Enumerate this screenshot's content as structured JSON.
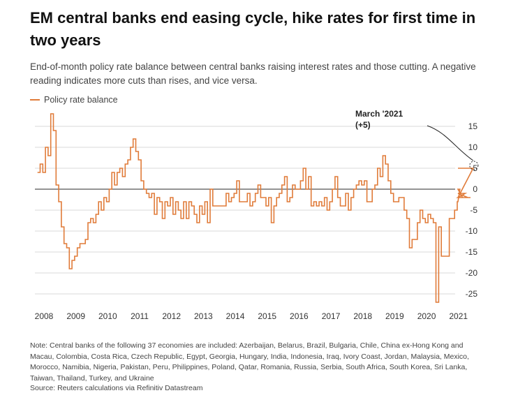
{
  "header": {
    "title": "EM central banks end easing cycle, hike rates for first time in two years",
    "subtitle": "End-of-month policy rate balance between central banks raising interest rates and those cutting. A negative reading indicates more cuts than rises, and vice versa."
  },
  "legend": {
    "label": "Policy rate balance",
    "color": "#e07b39"
  },
  "colors": {
    "series": "#e07b39",
    "grid": "#d9d9d9",
    "zero": "#555555",
    "annotation": "#222222"
  },
  "chart_data": {
    "type": "line",
    "step": true,
    "title": "EM central banks end easing cycle, hike rates for first time in two years",
    "ylabel": "Policy rate balance",
    "xlabel": "",
    "xlim": [
      2008,
      2021.4
    ],
    "ylim": [
      -28,
      18
    ],
    "x_ticks": [
      2008,
      2009,
      2010,
      2011,
      2012,
      2013,
      2014,
      2015,
      2016,
      2017,
      2018,
      2019,
      2020,
      2021
    ],
    "y_ticks": [
      15,
      10,
      5,
      0,
      -5,
      -10,
      -15,
      -20,
      -25
    ],
    "y_tick_labels": [
      "15",
      "10",
      "5",
      "0",
      "-5",
      "-10",
      "-15",
      "-20",
      "-25"
    ],
    "annotation": {
      "label": "March '2021",
      "value_label": "(+5)",
      "x": 2021.17,
      "y": 5
    },
    "series": [
      {
        "name": "Policy rate balance",
        "x_start": 2008.08,
        "step_months": 1,
        "values": [
          4,
          6,
          4,
          10,
          8,
          18,
          14,
          1,
          -3,
          -9,
          -13,
          -14,
          -19,
          -17,
          -16,
          -14,
          -13,
          -13,
          -12,
          -8,
          -7,
          -8,
          -6,
          -3,
          -5,
          -2,
          -3,
          0,
          4,
          1,
          4,
          5,
          3,
          6,
          7,
          10,
          12,
          9,
          7,
          2,
          0,
          -1,
          -2,
          -1,
          -6,
          -2,
          -3,
          -7,
          -3,
          -4,
          -2,
          -6,
          -3,
          -5,
          -7,
          -3,
          -7,
          -3,
          -4,
          -6,
          -8,
          -4,
          -6,
          -3,
          -8,
          0,
          -4,
          -4,
          -4,
          -4,
          -4,
          -1,
          -3,
          -2,
          -1,
          2,
          -3,
          -3,
          -3,
          -1,
          -4,
          -3,
          -1,
          1,
          -2,
          -2,
          -4,
          -2,
          -8,
          -4,
          -2,
          -1,
          1,
          3,
          -3,
          -2,
          1,
          0,
          0,
          2,
          5,
          0,
          3,
          -4,
          -3,
          -4,
          -3,
          -4,
          -2,
          -5,
          -3,
          0,
          3,
          -2,
          -4,
          -4,
          -1,
          -5,
          -2,
          0,
          1,
          2,
          1,
          2,
          -3,
          -3,
          0,
          1,
          5,
          3,
          8,
          6,
          2,
          -1,
          -3,
          -3,
          -2,
          -2,
          -5,
          -7,
          -14,
          -12,
          -12,
          -8,
          -5,
          -7,
          -8,
          -6,
          -7,
          -8,
          -27,
          -9,
          -16,
          -16,
          -16,
          -7,
          -7,
          -5,
          -3,
          0,
          -2,
          -1,
          -2,
          -2,
          5
        ]
      }
    ]
  },
  "footer": {
    "note": "Note: Central banks of the following 37 economies are included: Azerbaijan, Belarus, Brazil, Bulgaria, Chile, China ex-Hong Kong and Macau, Colombia, Costa Rica, Czech Republic, Egypt, Georgia, Hungary, India, Indonesia, Iraq, Ivory Coast, Jordan, Malaysia, Mexico, Morocco, Namibia, Nigeria, Pakistan, Peru, Philippines, Poland, Qatar, Romania, Russia, Serbia, South Africa, South Korea, Sri Lanka, Taiwan, Thailand, Turkey, and Ukraine",
    "source": "Source: Reuters calculations via Refinitiv Datastream"
  }
}
